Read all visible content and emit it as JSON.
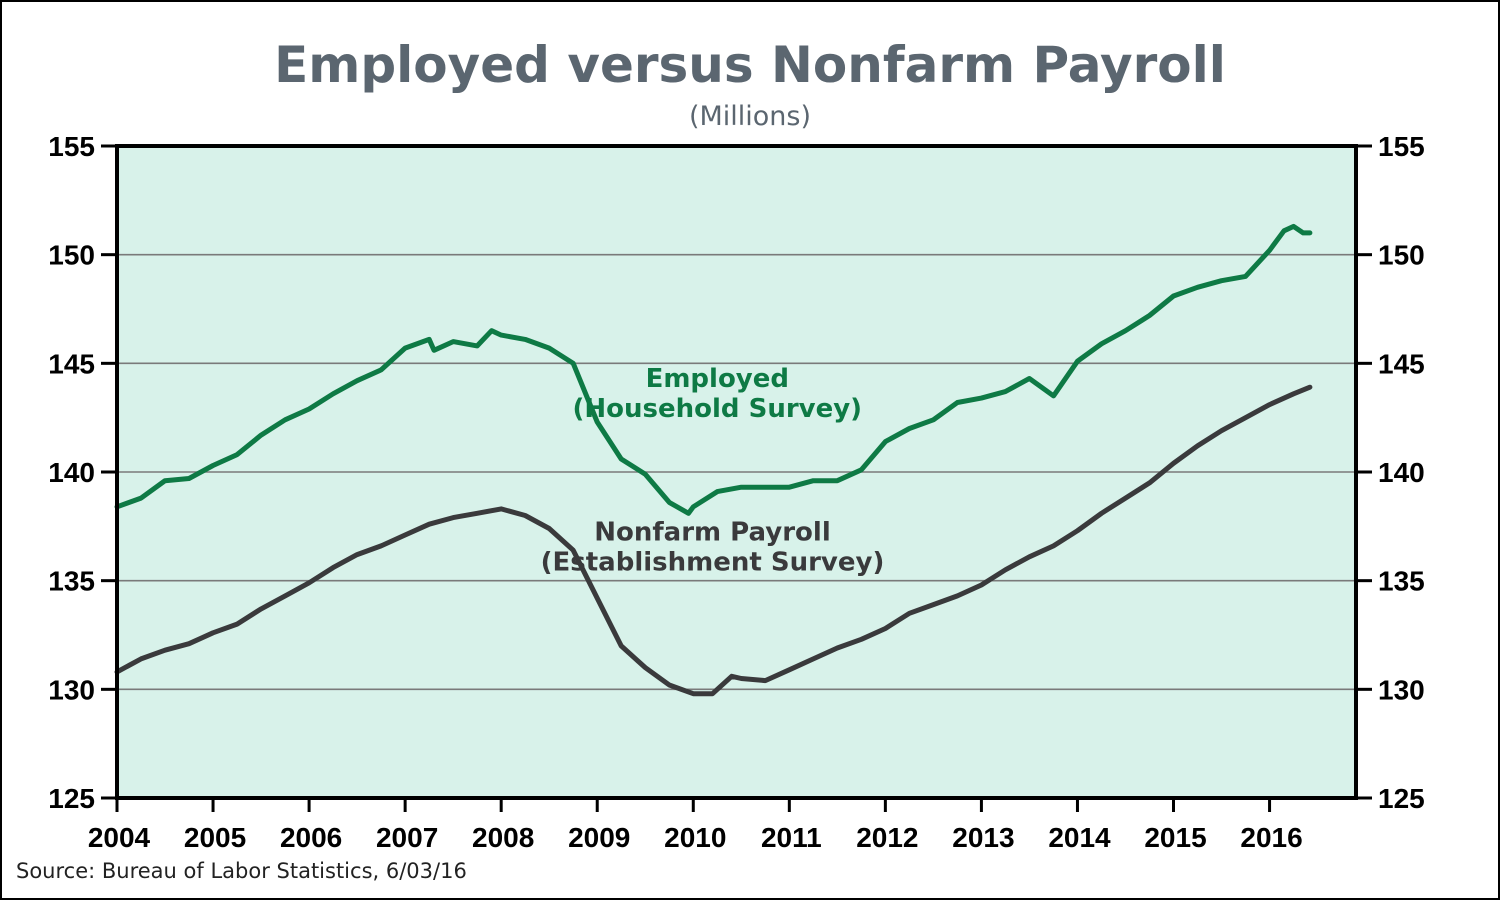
{
  "title": "Employed versus Nonfarm Payroll",
  "subtitle": "(Millions)",
  "source": "Source:  Bureau of Labor Statistics, 6/03/16",
  "colors": {
    "plot_background": "#d8f2ea",
    "employed": "#0e7a45",
    "payroll": "#3a3a3c",
    "title": "#5b6670",
    "grid": "#7a7a7a"
  },
  "chart_data": {
    "type": "line",
    "title": "Employed versus Nonfarm Payroll",
    "subtitle": "(Millions)",
    "xlim": [
      2004,
      2016.9
    ],
    "ylim": [
      125,
      155
    ],
    "y_ticks": [
      125,
      130,
      135,
      140,
      145,
      150,
      155
    ],
    "x_ticks": [
      2004,
      2005,
      2006,
      2007,
      2008,
      2009,
      2010,
      2011,
      2012,
      2013,
      2014,
      2015,
      2016
    ],
    "y_axis_both_sides": true,
    "grid": "horizontal",
    "series": [
      {
        "name": "Employed (Household Survey)",
        "label_lines": [
          "Employed",
          "(Household Survey)"
        ],
        "color": "#0e7a45",
        "points": [
          [
            2004.0,
            138.4
          ],
          [
            2004.25,
            138.8
          ],
          [
            2004.5,
            139.6
          ],
          [
            2004.75,
            139.7
          ],
          [
            2005.0,
            140.3
          ],
          [
            2005.25,
            140.8
          ],
          [
            2005.5,
            141.7
          ],
          [
            2005.75,
            142.4
          ],
          [
            2006.0,
            142.9
          ],
          [
            2006.25,
            143.6
          ],
          [
            2006.5,
            144.2
          ],
          [
            2006.75,
            144.7
          ],
          [
            2007.0,
            145.7
          ],
          [
            2007.25,
            146.1
          ],
          [
            2007.3,
            145.6
          ],
          [
            2007.5,
            146.0
          ],
          [
            2007.75,
            145.8
          ],
          [
            2007.9,
            146.5
          ],
          [
            2008.0,
            146.3
          ],
          [
            2008.25,
            146.1
          ],
          [
            2008.5,
            145.7
          ],
          [
            2008.75,
            145.0
          ],
          [
            2009.0,
            142.3
          ],
          [
            2009.25,
            140.6
          ],
          [
            2009.5,
            139.9
          ],
          [
            2009.75,
            138.6
          ],
          [
            2009.95,
            138.1
          ],
          [
            2010.0,
            138.4
          ],
          [
            2010.25,
            139.1
          ],
          [
            2010.5,
            139.3
          ],
          [
            2010.75,
            139.3
          ],
          [
            2011.0,
            139.3
          ],
          [
            2011.25,
            139.6
          ],
          [
            2011.5,
            139.6
          ],
          [
            2011.75,
            140.1
          ],
          [
            2012.0,
            141.4
          ],
          [
            2012.25,
            142.0
          ],
          [
            2012.5,
            142.4
          ],
          [
            2012.75,
            143.2
          ],
          [
            2013.0,
            143.4
          ],
          [
            2013.25,
            143.7
          ],
          [
            2013.5,
            144.3
          ],
          [
            2013.75,
            143.5
          ],
          [
            2014.0,
            145.1
          ],
          [
            2014.25,
            145.9
          ],
          [
            2014.5,
            146.5
          ],
          [
            2014.75,
            147.2
          ],
          [
            2015.0,
            148.1
          ],
          [
            2015.25,
            148.5
          ],
          [
            2015.5,
            148.8
          ],
          [
            2015.75,
            149.0
          ],
          [
            2016.0,
            150.2
          ],
          [
            2016.15,
            151.1
          ],
          [
            2016.25,
            151.3
          ],
          [
            2016.35,
            151.0
          ],
          [
            2016.42,
            151.0
          ]
        ]
      },
      {
        "name": "Nonfarm Payroll (Establishment Survey)",
        "label_lines": [
          "Nonfarm Payroll",
          "(Establishment Survey)"
        ],
        "color": "#3a3a3c",
        "points": [
          [
            2004.0,
            130.8
          ],
          [
            2004.25,
            131.4
          ],
          [
            2004.5,
            131.8
          ],
          [
            2004.75,
            132.1
          ],
          [
            2005.0,
            132.6
          ],
          [
            2005.25,
            133.0
          ],
          [
            2005.5,
            133.7
          ],
          [
            2005.75,
            134.3
          ],
          [
            2006.0,
            134.9
          ],
          [
            2006.25,
            135.6
          ],
          [
            2006.5,
            136.2
          ],
          [
            2006.75,
            136.6
          ],
          [
            2007.0,
            137.1
          ],
          [
            2007.25,
            137.6
          ],
          [
            2007.5,
            137.9
          ],
          [
            2007.75,
            138.1
          ],
          [
            2008.0,
            138.3
          ],
          [
            2008.25,
            138.0
          ],
          [
            2008.5,
            137.4
          ],
          [
            2008.75,
            136.4
          ],
          [
            2009.0,
            134.2
          ],
          [
            2009.25,
            132.0
          ],
          [
            2009.5,
            131.0
          ],
          [
            2009.75,
            130.2
          ],
          [
            2010.0,
            129.8
          ],
          [
            2010.2,
            129.8
          ],
          [
            2010.4,
            130.6
          ],
          [
            2010.5,
            130.5
          ],
          [
            2010.75,
            130.4
          ],
          [
            2011.0,
            130.9
          ],
          [
            2011.25,
            131.4
          ],
          [
            2011.5,
            131.9
          ],
          [
            2011.75,
            132.3
          ],
          [
            2012.0,
            132.8
          ],
          [
            2012.25,
            133.5
          ],
          [
            2012.5,
            133.9
          ],
          [
            2012.75,
            134.3
          ],
          [
            2013.0,
            134.8
          ],
          [
            2013.25,
            135.5
          ],
          [
            2013.5,
            136.1
          ],
          [
            2013.75,
            136.6
          ],
          [
            2014.0,
            137.3
          ],
          [
            2014.25,
            138.1
          ],
          [
            2014.5,
            138.8
          ],
          [
            2014.75,
            139.5
          ],
          [
            2015.0,
            140.4
          ],
          [
            2015.25,
            141.2
          ],
          [
            2015.5,
            141.9
          ],
          [
            2015.75,
            142.5
          ],
          [
            2016.0,
            143.1
          ],
          [
            2016.25,
            143.6
          ],
          [
            2016.42,
            143.9
          ]
        ]
      }
    ]
  }
}
